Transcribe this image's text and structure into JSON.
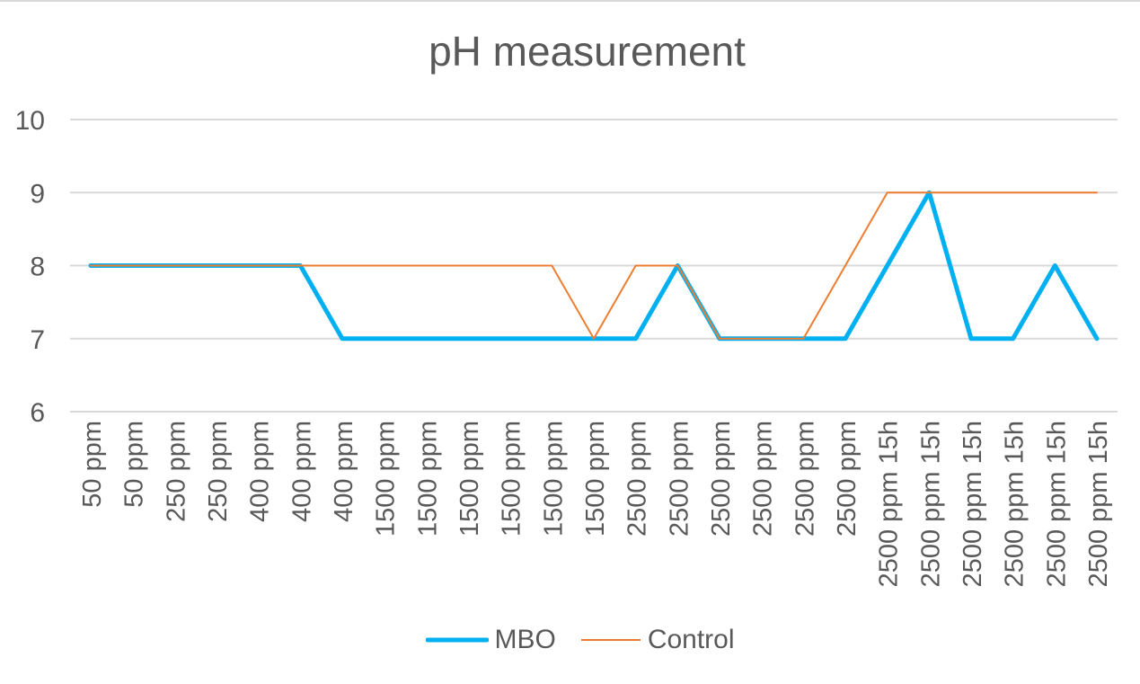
{
  "chart_data": {
    "type": "line",
    "title": "pH measurement",
    "xlabel": "",
    "ylabel": "",
    "ylim": [
      6,
      10
    ],
    "yticks": [
      6,
      7,
      8,
      9,
      10
    ],
    "grid": true,
    "legend_position": "bottom",
    "categories": [
      "50 ppm",
      "50 ppm",
      "250 ppm",
      "250 ppm",
      "400 ppm",
      "400 ppm",
      "400 ppm",
      "1500 ppm",
      "1500 ppm",
      "1500 ppm",
      "1500 ppm",
      "1500 ppm",
      "1500 ppm",
      "2500 ppm",
      "2500 ppm",
      "2500 ppm",
      "2500 ppm",
      "2500 ppm",
      "2500 ppm",
      "2500 ppm 15h",
      "2500 ppm 15h",
      "2500 ppm 15h",
      "2500 ppm 15h",
      "2500 ppm 15h",
      "2500 ppm 15h"
    ],
    "series": [
      {
        "name": "MBO",
        "color": "#00b0f0",
        "values": [
          8,
          8,
          8,
          8,
          8,
          8,
          7,
          7,
          7,
          7,
          7,
          7,
          7,
          7,
          8,
          7,
          7,
          7,
          7,
          8,
          9,
          7,
          7,
          8,
          7
        ]
      },
      {
        "name": "Control",
        "color": "#ed7d31",
        "values": [
          8,
          8,
          8,
          8,
          8,
          8,
          8,
          8,
          8,
          8,
          8,
          8,
          7,
          8,
          8,
          7,
          7,
          7,
          8,
          9,
          9,
          9,
          9,
          9,
          9
        ]
      }
    ]
  }
}
